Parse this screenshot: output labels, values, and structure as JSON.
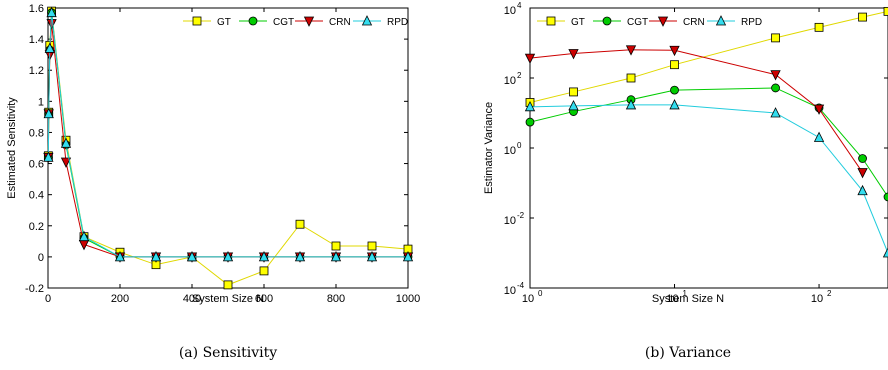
{
  "chart_data": [
    {
      "type": "line",
      "caption": "(a) Sensitivity",
      "xlabel": "System Size N",
      "ylabel": "Estimated Sensitivity",
      "xlim": [
        0,
        1000
      ],
      "ylim": [
        -0.2,
        1.6
      ],
      "xticks": [
        0,
        200,
        400,
        600,
        800,
        1000
      ],
      "yticks": [
        -0.2,
        0,
        0.2,
        0.4,
        0.6,
        0.8,
        1,
        1.2,
        1.4,
        1.6
      ],
      "legend_position": "top-right",
      "grid": false,
      "series": [
        {
          "name": "GT",
          "color": "#ffff00",
          "stroke": "#e0d800",
          "marker": "square",
          "x": [
            1,
            2,
            5,
            10,
            50,
            100,
            200,
            300,
            400,
            500,
            600,
            700,
            800,
            900,
            1000
          ],
          "y": [
            0.65,
            0.93,
            1.36,
            1.58,
            0.75,
            0.13,
            0.03,
            -0.05,
            0.0,
            -0.18,
            -0.09,
            0.21,
            0.07,
            0.07,
            0.05
          ]
        },
        {
          "name": "CGT",
          "color": "#00cc00",
          "stroke": "#00cc00",
          "marker": "circle",
          "x": [
            1,
            2,
            5,
            10,
            50,
            100,
            200,
            300,
            400,
            500,
            600,
            700,
            800,
            900,
            1000
          ],
          "y": [
            0.64,
            0.92,
            1.33,
            1.57,
            0.72,
            0.12,
            0.0,
            0.0,
            0.0,
            0.0,
            0.0,
            0.0,
            0.0,
            0.0,
            0.0
          ]
        },
        {
          "name": "CRN",
          "color": "#cc0000",
          "stroke": "#cc0000",
          "marker": "triangle-down",
          "x": [
            1,
            2,
            5,
            10,
            50,
            100,
            200,
            300,
            400,
            500,
            600,
            700,
            800,
            900,
            1000
          ],
          "y": [
            0.64,
            0.92,
            1.3,
            1.5,
            0.61,
            0.08,
            0.0,
            0.0,
            0.0,
            0.0,
            0.0,
            0.0,
            0.0,
            0.0,
            0.0
          ]
        },
        {
          "name": "RPD",
          "color": "#33ddee",
          "stroke": "#22ccdd",
          "marker": "triangle-up",
          "x": [
            1,
            2,
            5,
            10,
            50,
            100,
            200,
            300,
            400,
            500,
            600,
            700,
            800,
            900,
            1000
          ],
          "y": [
            0.64,
            0.92,
            1.34,
            1.57,
            0.73,
            0.13,
            0.0,
            0.0,
            0.0,
            0.0,
            0.0,
            0.0,
            0.0,
            0.0,
            0.0
          ]
        }
      ]
    },
    {
      "type": "line",
      "caption": "(b) Variance",
      "xlabel": "System Size N",
      "ylabel": "Estimator Variance",
      "xscale": "log",
      "yscale": "log",
      "xlim": [
        1,
        300
      ],
      "ylim": [
        0.0001,
        10000
      ],
      "xticks": [
        {
          "base": "10",
          "exp": "0",
          "value": 1
        },
        {
          "base": "10",
          "exp": "1",
          "value": 10
        },
        {
          "base": "10",
          "exp": "2",
          "value": 100
        }
      ],
      "yticks": [
        {
          "base": "10",
          "exp": "-4",
          "value": 0.0001
        },
        {
          "base": "10",
          "exp": "-2",
          "value": 0.01
        },
        {
          "base": "10",
          "exp": "0",
          "value": 1
        },
        {
          "base": "10",
          "exp": "2",
          "value": 100
        },
        {
          "base": "10",
          "exp": "4",
          "value": 10000
        }
      ],
      "legend_position": "top",
      "grid": false,
      "series": [
        {
          "name": "GT",
          "color": "#ffff00",
          "stroke": "#e0d800",
          "marker": "square",
          "x": [
            1,
            2,
            5,
            10,
            50,
            100,
            200,
            300
          ],
          "y": [
            20,
            40,
            100,
            240,
            1400,
            2800,
            5500,
            8000
          ]
        },
        {
          "name": "CGT",
          "color": "#00cc00",
          "stroke": "#00cc00",
          "marker": "circle",
          "x": [
            1,
            2,
            5,
            10,
            50,
            100,
            200,
            300
          ],
          "y": [
            5.5,
            11,
            24,
            45,
            52,
            14,
            0.5,
            0.04
          ]
        },
        {
          "name": "CRN",
          "color": "#cc0000",
          "stroke": "#cc0000",
          "marker": "triangle-down",
          "x": [
            1,
            2,
            5,
            10,
            50,
            100,
            200
          ],
          "y": [
            370,
            500,
            640,
            620,
            125,
            13,
            0.2
          ]
        },
        {
          "name": "RPD",
          "color": "#33ddee",
          "stroke": "#22ccdd",
          "marker": "triangle-up",
          "x": [
            1,
            2,
            5,
            10,
            50,
            100,
            200,
            300
          ],
          "y": [
            15,
            16,
            17,
            17,
            10,
            2,
            0.06,
            0.001
          ]
        }
      ]
    }
  ]
}
